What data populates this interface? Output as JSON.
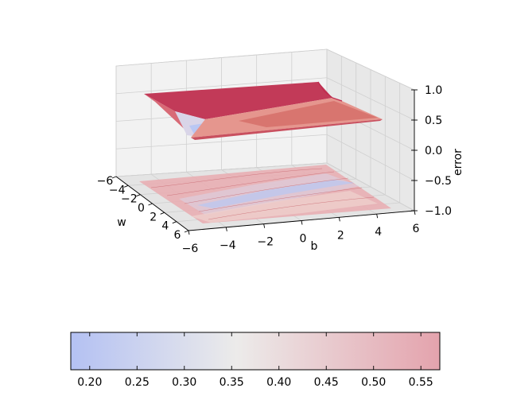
{
  "chart_data": {
    "type": "surface3d",
    "title": "",
    "xlabel": "w",
    "ylabel": "b",
    "zlabel": "error",
    "x_ticks": [
      "−6",
      "−4",
      "−2",
      "0",
      "2",
      "4",
      "6"
    ],
    "y_ticks": [
      "−6",
      "−4",
      "−2",
      "0",
      "2",
      "4",
      "6"
    ],
    "z_ticks": [
      "−1.0",
      "−0.5",
      "0.0",
      "0.5",
      "1.0"
    ],
    "xlim": [
      -6,
      6
    ],
    "ylim": [
      -6,
      6
    ],
    "zlim": [
      -1.0,
      1.0
    ],
    "surface_z_range": [
      0.18,
      0.57
    ],
    "contour_offset_z": -1.0,
    "grid": true,
    "cmap": "coolwarm",
    "colorbar": {
      "orientation": "horizontal",
      "placement": "bottom",
      "range": [
        0.18,
        0.57
      ],
      "ticks": [
        "0.20",
        "0.25",
        "0.30",
        "0.35",
        "0.40",
        "0.45",
        "0.50",
        "0.55"
      ]
    },
    "colors": {
      "low": "#6b8ef0",
      "mid": "#dedcdb",
      "high": "#c0294d"
    }
  }
}
